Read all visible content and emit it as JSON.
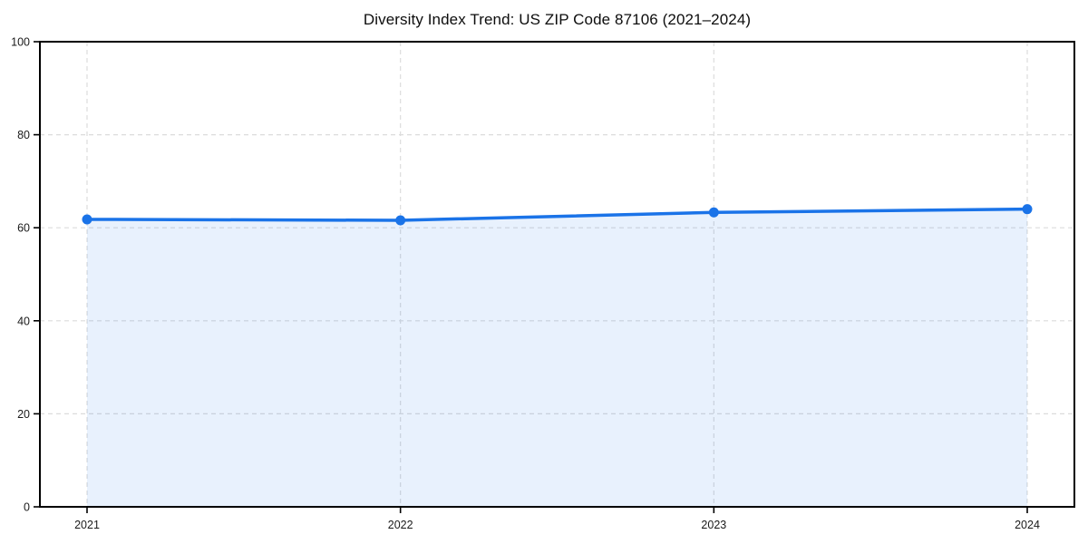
{
  "chart_data": {
    "type": "area",
    "title": "Diversity Index Trend: US ZIP Code 87106 (2021–2024)",
    "categories": [
      "2021",
      "2022",
      "2023",
      "2024"
    ],
    "values": [
      61.8,
      61.6,
      63.3,
      64.0
    ],
    "series_name": "Diversity Index",
    "xlabel": "",
    "ylabel": "",
    "ylim": [
      0,
      100
    ],
    "yticks": [
      0,
      20,
      40,
      60,
      80,
      100
    ],
    "grid": true,
    "grid_style": "dashed",
    "legend_position": "none",
    "line_color": "#1a73e8",
    "fill_color": "#1a73e8",
    "fill_opacity": 0.1,
    "grid_color": "#dcdcdc",
    "axis_color": "#000000",
    "tick_label_color": "#1a1a1a",
    "background_color": "#ffffff",
    "marker": "circle"
  }
}
